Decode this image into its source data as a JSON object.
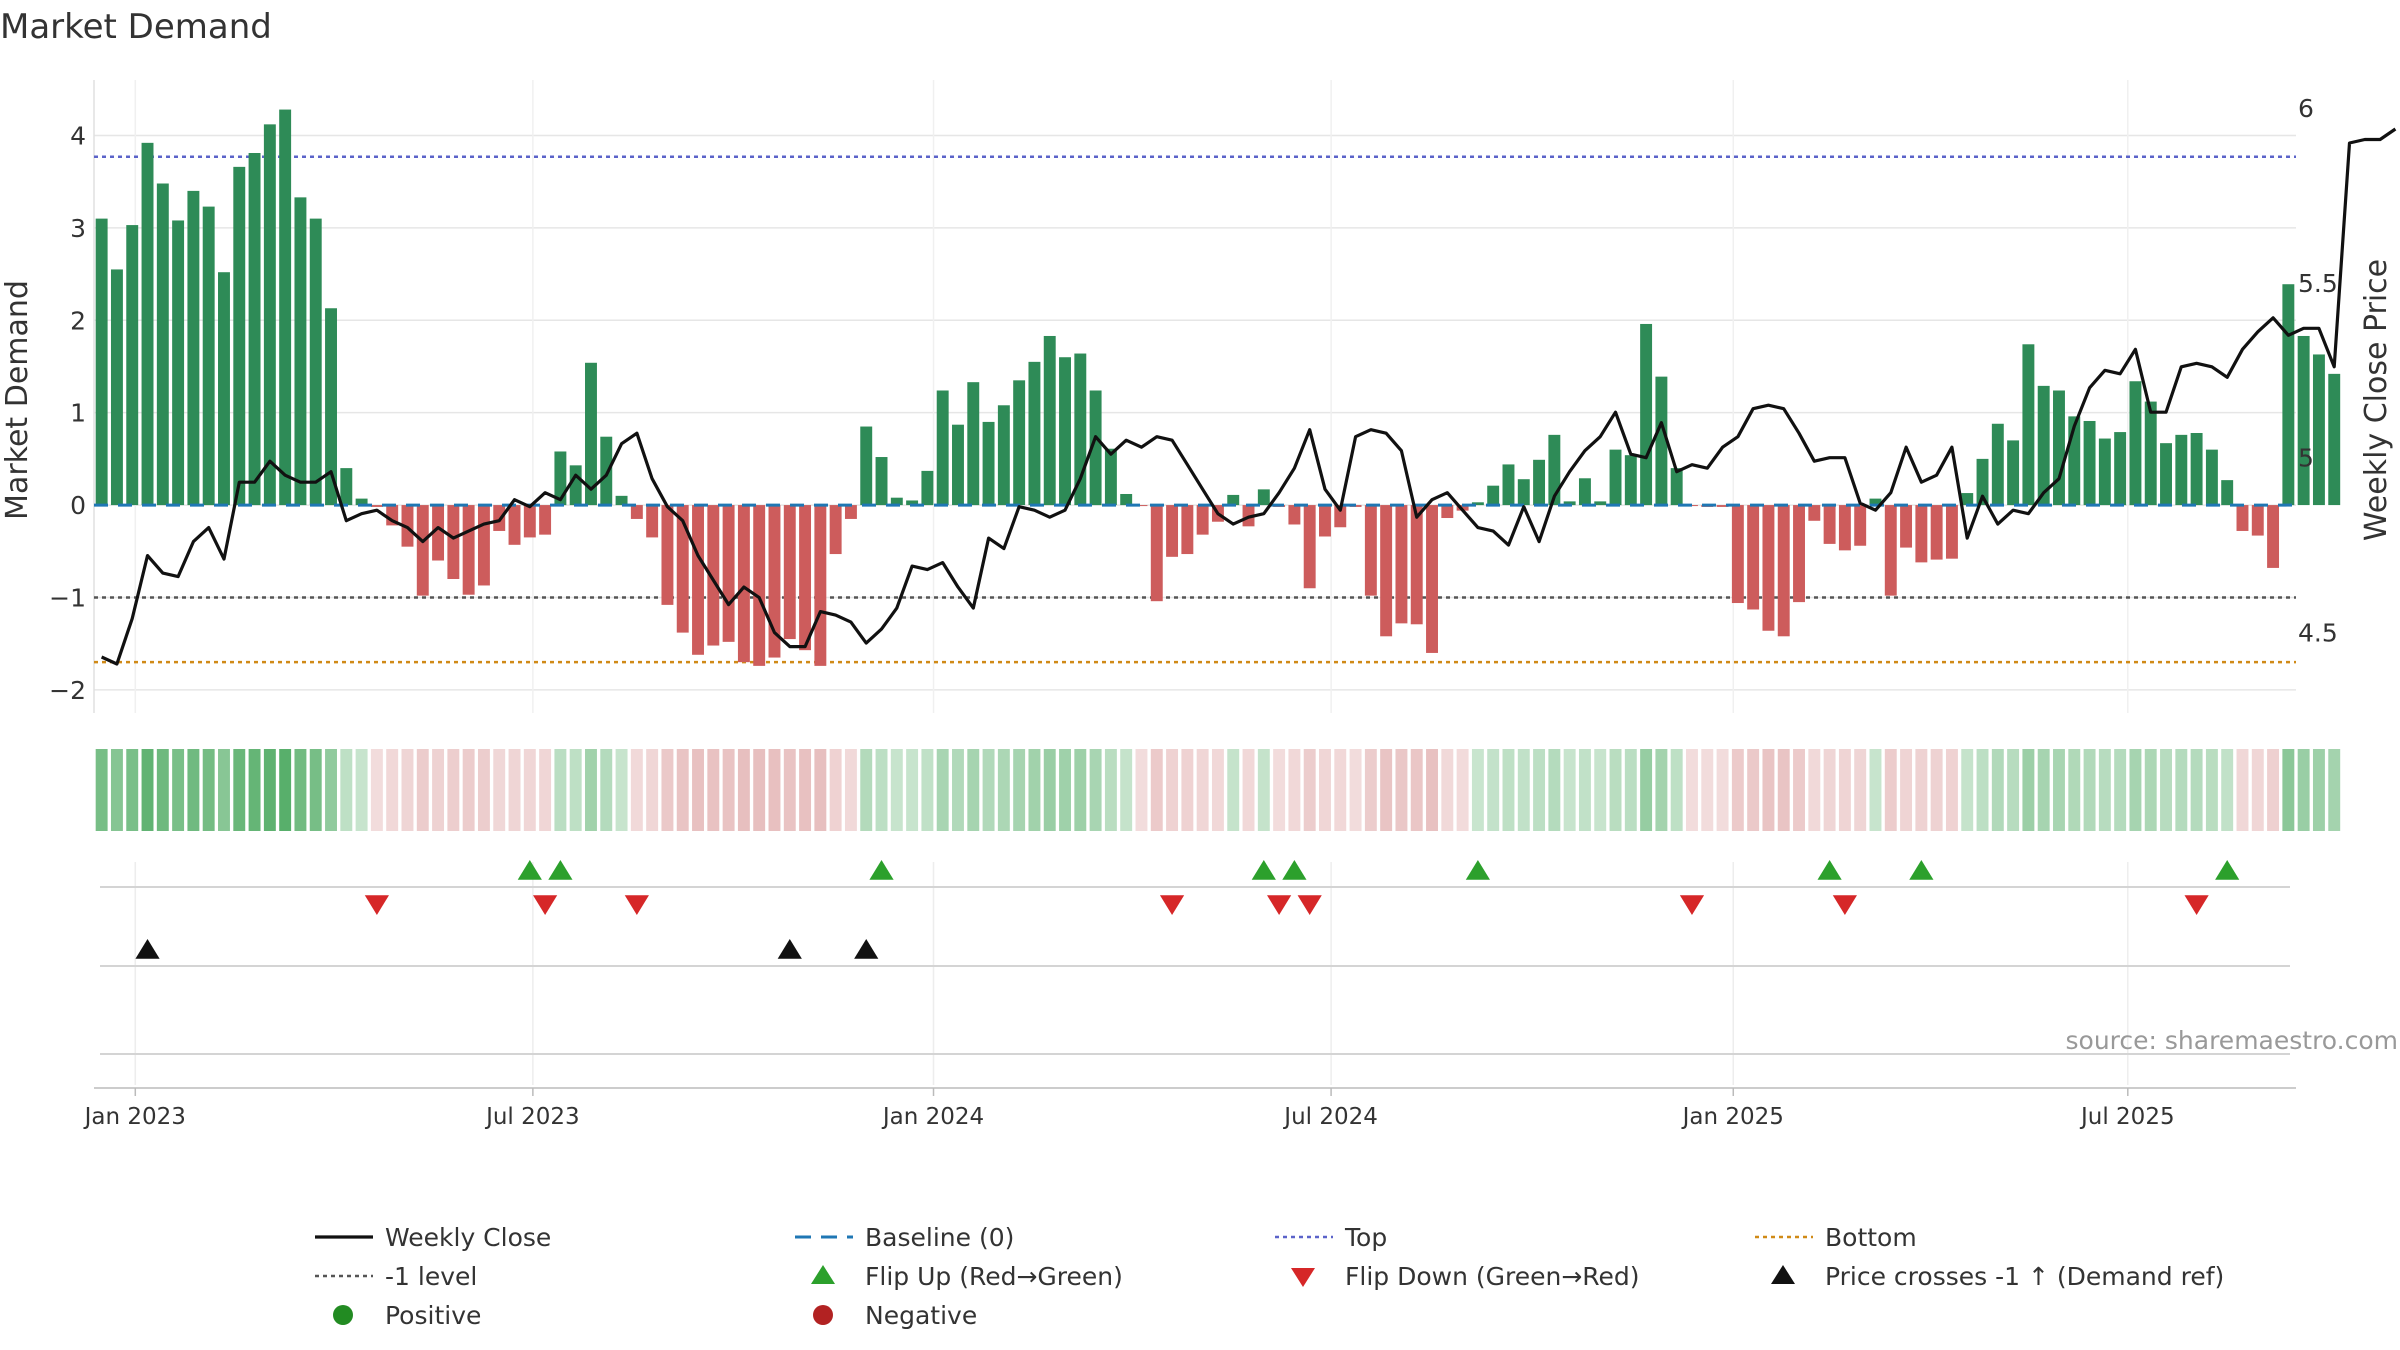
{
  "chart_data": {
    "type": "bar+line",
    "title": "Market Demand",
    "ylabel_left": "Market Demand",
    "ylabel_right": "Weekly Close Price",
    "ylim_left": [
      -2.25,
      4.6
    ],
    "ylim_right": [
      4.27,
      6.08
    ],
    "yticks_left": [
      -2,
      -1,
      0,
      1,
      2,
      3,
      4
    ],
    "yticks_right": [
      4.5,
      5,
      5.5,
      6
    ],
    "x_ticks": [
      {
        "label": "Jan 2023",
        "week": 2.2
      },
      {
        "label": "Jul 2023",
        "week": 28.2
      },
      {
        "label": "Jan 2024",
        "week": 54.4
      },
      {
        "label": "Jul 2024",
        "week": 80.4
      },
      {
        "label": "Jan 2025",
        "week": 106.7
      },
      {
        "label": "Jul 2025",
        "week": 132.5
      }
    ],
    "x_range": [
      -0.5,
      143.5
    ],
    "reference_lines": {
      "top": 3.77,
      "minus_one": -1,
      "bottom": -1.7,
      "baseline": 0
    },
    "demand": [
      3.1,
      2.55,
      3.03,
      3.92,
      3.48,
      3.08,
      3.4,
      3.23,
      2.52,
      3.66,
      3.81,
      4.12,
      4.28,
      3.33,
      3.1,
      2.13,
      0.4,
      0.07,
      -0.02,
      -0.22,
      -0.45,
      -0.98,
      -0.6,
      -0.8,
      -0.97,
      -0.87,
      -0.28,
      -0.43,
      -0.35,
      -0.32,
      0.58,
      0.43,
      1.54,
      0.74,
      0.1,
      -0.15,
      -0.35,
      -1.08,
      -1.38,
      -1.62,
      -1.52,
      -1.48,
      -1.7,
      -1.74,
      -1.65,
      -1.45,
      -1.57,
      -1.74,
      -0.53,
      -0.15,
      0.85,
      0.52,
      0.08,
      0.05,
      0.37,
      1.24,
      0.87,
      1.33,
      0.9,
      1.08,
      1.35,
      1.55,
      1.83,
      1.6,
      1.64,
      1.24,
      0.61,
      0.12,
      -0.01,
      -1.04,
      -0.56,
      -0.53,
      -0.32,
      -0.18,
      0.11,
      -0.23,
      0.17,
      -0.02,
      -0.21,
      -0.9,
      -0.34,
      -0.24,
      -0.02,
      -0.98,
      -1.42,
      -1.28,
      -1.29,
      -1.6,
      -0.14,
      -0.06,
      0.03,
      0.21,
      0.44,
      0.28,
      0.49,
      0.76,
      0.04,
      0.29,
      0.04,
      0.6,
      0.54,
      1.96,
      1.39,
      0.4,
      -0.01,
      -0.02,
      -0.02,
      -1.06,
      -1.13,
      -1.36,
      -1.42,
      -1.05,
      -0.17,
      -0.42,
      -0.49,
      -0.44,
      0.07,
      -0.98,
      -0.46,
      -0.62,
      -0.59,
      -0.58,
      0.13,
      0.5,
      0.88,
      0.7,
      1.74,
      1.29,
      1.24,
      0.96,
      0.91,
      0.72,
      0.79,
      1.34,
      1.12,
      0.67,
      0.76,
      0.78,
      0.6,
      0.27,
      -0.28,
      -0.33,
      -0.68,
      2.39,
      1.83,
      1.63,
      1.42
    ],
    "weekly_close": [
      4.43,
      4.41,
      4.54,
      4.72,
      4.67,
      4.66,
      4.76,
      4.8,
      4.71,
      4.93,
      4.93,
      4.99,
      4.95,
      4.93,
      4.93,
      4.96,
      4.82,
      4.84,
      4.85,
      4.82,
      4.8,
      4.76,
      4.8,
      4.77,
      4.79,
      4.81,
      4.82,
      4.88,
      4.86,
      4.9,
      4.88,
      4.95,
      4.91,
      4.95,
      5.04,
      5.07,
      4.94,
      4.86,
      4.82,
      4.72,
      4.65,
      4.58,
      4.63,
      4.6,
      4.5,
      4.46,
      4.46,
      4.56,
      4.55,
      4.53,
      4.47,
      4.51,
      4.57,
      4.69,
      4.68,
      4.7,
      4.63,
      4.57,
      4.77,
      4.74,
      4.86,
      4.85,
      4.83,
      4.85,
      4.94,
      5.06,
      5.01,
      5.05,
      5.03,
      5.06,
      5.05,
      4.98,
      4.91,
      4.84,
      4.81,
      4.83,
      4.84,
      4.9,
      4.97,
      5.08,
      4.91,
      4.85,
      5.06,
      5.08,
      5.07,
      5.02,
      4.83,
      4.88,
      4.9,
      4.85,
      4.8,
      4.79,
      4.75,
      4.86,
      4.76,
      4.89,
      4.96,
      5.02,
      5.06,
      5.13,
      5.01,
      5,
      5.1,
      4.96,
      4.98,
      4.97,
      5.03,
      5.06,
      5.14,
      5.15,
      5.14,
      5.07,
      4.99,
      5,
      5,
      4.87,
      4.85,
      4.9,
      5.03,
      4.93,
      4.95,
      5.03,
      4.77,
      4.89,
      4.81,
      4.85,
      4.84,
      4.9,
      4.94,
      5.09,
      5.2,
      5.25,
      5.24,
      5.31,
      5.13,
      5.13,
      5.26,
      5.27,
      5.26,
      5.23,
      5.31,
      5.36,
      5.4,
      5.35,
      5.37,
      5.37,
      5.26,
      5.9,
      5.91,
      5.91,
      5.94
    ],
    "flip_up_weeks": [
      28,
      30,
      51,
      76,
      78,
      90,
      113,
      119,
      139
    ],
    "flip_down_weeks": [
      18,
      29,
      35,
      70,
      77,
      79,
      104,
      114,
      137
    ],
    "price_cross_weeks": [
      3,
      45,
      50
    ],
    "legend": [
      {
        "label": "Weekly Close",
        "kind": "line",
        "color": "#111111"
      },
      {
        "label": "Baseline (0)",
        "kind": "dash",
        "color": "#1f77b4"
      },
      {
        "label": "Top",
        "kind": "dot",
        "color": "#5b63c9"
      },
      {
        "label": "Bottom",
        "kind": "dot",
        "color": "#d08a17"
      },
      {
        "label": "-1 level",
        "kind": "dot",
        "color": "#555555"
      },
      {
        "label": "Flip Up (Red→Green)",
        "kind": "tri-up",
        "color": "#2ca02c"
      },
      {
        "label": "Flip Down (Green→Red)",
        "kind": "tri-down",
        "color": "#d62728"
      },
      {
        "label": "Price crosses -1 ↑ (Demand ref)",
        "kind": "tri-up",
        "color": "#111111"
      },
      {
        "label": "Positive",
        "kind": "dot-marker",
        "color": "#228b22"
      },
      {
        "label": "Negative",
        "kind": "dot-marker",
        "color": "#b22222"
      }
    ]
  },
  "source_label": "source: sharemaestro.com",
  "colors": {
    "positive_bar": "#2e8b57",
    "negative_bar": "#cd5c5c",
    "strip_positive": "#4aa85e",
    "strip_negative": "#d48a8a",
    "grid": "#e6e6e6",
    "axis_text": "#333333"
  }
}
